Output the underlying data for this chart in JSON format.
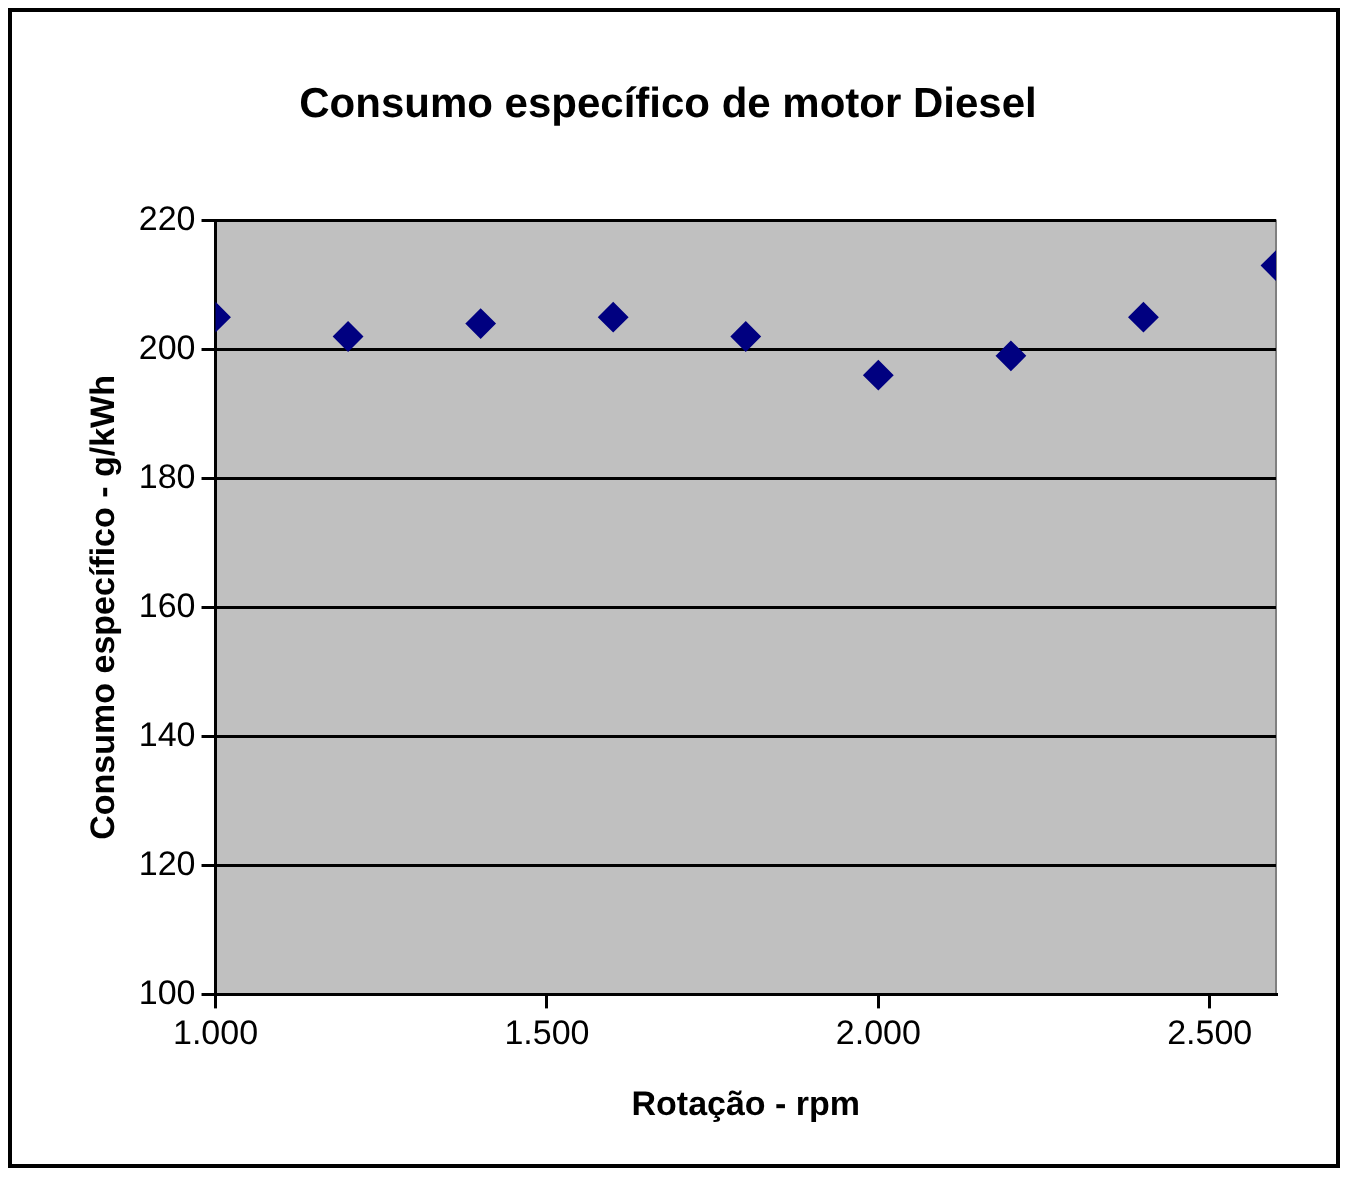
{
  "chart_data": {
    "type": "scatter",
    "title": "Consumo específico de motor Diesel",
    "xlabel": "Rotação - rpm",
    "ylabel": "Consumo específico - g/kWh",
    "x": [
      1000,
      1200,
      1400,
      1600,
      1800,
      2000,
      2200,
      2400,
      2600
    ],
    "series": [
      {
        "color": "#000080",
        "values": [
          205,
          202,
          204,
          205,
          202,
          196,
          199,
          205,
          213
        ]
      }
    ],
    "xlim": [
      1000,
      2600
    ],
    "xticks": [
      {
        "value": 1000,
        "label": "1.000"
      },
      {
        "value": 1500,
        "label": "1.500"
      },
      {
        "value": 2000,
        "label": "2.000"
      },
      {
        "value": 2500,
        "label": "2.500"
      }
    ],
    "ylim": [
      100,
      220
    ],
    "yticks": [
      100,
      120,
      140,
      160,
      180,
      200,
      220
    ],
    "grid": "y",
    "legend": false,
    "marker": "diamond"
  }
}
